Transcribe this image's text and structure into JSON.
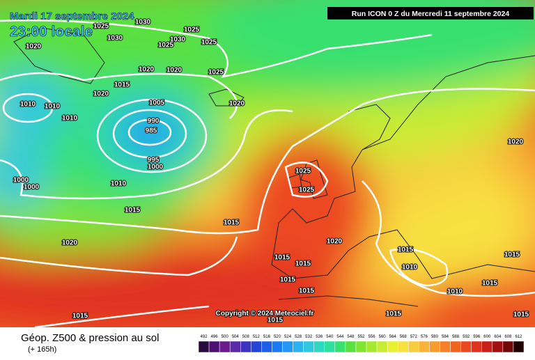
{
  "header": {
    "date": "Mardi 17 septembre 2024",
    "time": "23:00 locale",
    "run": "Run ICON 0 Z du Mercredi 11 septembre 2024"
  },
  "copyright": "Copyright © 2024 Meteociel.fr",
  "footer": {
    "title": "Géop. Z500 & pression au sol",
    "lead": "(+ 165h)"
  },
  "legend": {
    "values": [
      492,
      496,
      500,
      504,
      508,
      512,
      516,
      520,
      524,
      528,
      532,
      536,
      540,
      544,
      548,
      552,
      556,
      560,
      564,
      568,
      572,
      576,
      580,
      584,
      588,
      592,
      596,
      600,
      604,
      608,
      612
    ],
    "colors": [
      "#2a0a3e",
      "#4b1070",
      "#6a1c8c",
      "#5a2aa8",
      "#3c34c0",
      "#2346d8",
      "#1f5ee8",
      "#1c7af0",
      "#2496f4",
      "#2cb2f0",
      "#30c8e0",
      "#2ed8c0",
      "#2ee0a0",
      "#38e070",
      "#5ae040",
      "#80e430",
      "#a4e830",
      "#c8ec30",
      "#e8f030",
      "#f8e040",
      "#f8cc40",
      "#f8b438",
      "#f89c30",
      "#f48028",
      "#f06420",
      "#ec4820",
      "#e03020",
      "#c82018",
      "#a01010",
      "#700808",
      "#200000"
    ]
  },
  "isobar_labels": [
    1025,
    1030,
    1030,
    1020,
    1025,
    1030,
    1025,
    1025,
    1020,
    1020,
    1025,
    1020,
    1015,
    1010,
    1010,
    1010,
    1005,
    990,
    985,
    995,
    1000,
    1010,
    1000,
    1000,
    1015,
    1015,
    1020,
    1020,
    1025,
    1025,
    1020,
    1015,
    1015,
    1015,
    1015,
    1015,
    1015,
    1015,
    1010,
    1010,
    1015,
    1015,
    1020,
    1015,
    1015
  ]
}
